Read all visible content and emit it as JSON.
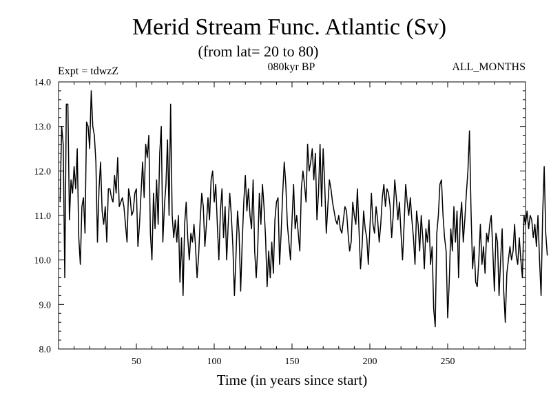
{
  "chart_data": {
    "type": "line",
    "title": "Merid Stream Func. Atlantic (Sv)",
    "subtitle": "(from lat= 20 to 80)",
    "annotation_left": "Expt = tdwzZ",
    "annotation_center": "080kyr BP",
    "annotation_right": "ALL_MONTHS",
    "xlabel": "Time (in years since start)",
    "ylabel": "",
    "xlim": [
      0,
      300
    ],
    "ylim": [
      8.0,
      14.0
    ],
    "xticks": [
      50,
      100,
      150,
      200,
      250
    ],
    "yticks": [
      "8.0",
      "9.0",
      "10.0",
      "11.0",
      "12.0",
      "13.0",
      "14.0"
    ],
    "grid": false,
    "line_color": "#000000",
    "series": [
      {
        "x_start": 1,
        "x_step": 1,
        "values": [
          11.3,
          13.0,
          12.6,
          9.6,
          13.5,
          13.5,
          10.9,
          11.8,
          11.5,
          12.1,
          11.6,
          12.5,
          10.5,
          9.9,
          11.2,
          11.4,
          10.6,
          13.1,
          13.0,
          12.5,
          13.8,
          13.0,
          12.8,
          12.2,
          10.4,
          11.6,
          12.2,
          11.1,
          10.8,
          11.2,
          10.4,
          11.6,
          11.6,
          11.4,
          11.3,
          11.9,
          11.5,
          12.3,
          11.2,
          11.3,
          11.4,
          11.2,
          10.8,
          10.4,
          11.6,
          11.4,
          11.0,
          11.1,
          11.5,
          11.6,
          10.3,
          10.8,
          11.5,
          12.2,
          11.4,
          12.6,
          12.3,
          12.8,
          10.6,
          10.0,
          11.5,
          10.7,
          11.8,
          10.8,
          12.4,
          13.0,
          10.4,
          11.2,
          11.7,
          12.7,
          11.0,
          13.5,
          11.0,
          10.5,
          10.9,
          10.4,
          11.0,
          9.5,
          10.5,
          9.2,
          10.8,
          11.3,
          10.5,
          10.0,
          10.6,
          10.4,
          10.8,
          10.3,
          9.6,
          10.1,
          10.9,
          11.5,
          11.2,
          10.3,
          10.8,
          11.4,
          10.9,
          11.8,
          12.0,
          11.3,
          11.7,
          10.8,
          10.0,
          11.1,
          11.6,
          10.5,
          11.2,
          10.0,
          10.8,
          11.5,
          11.0,
          10.3,
          9.2,
          10.1,
          11.1,
          10.6,
          9.3,
          10.4,
          11.3,
          11.9,
          11.1,
          11.6,
          11.0,
          10.7,
          11.8,
          10.2,
          9.6,
          10.3,
          11.5,
          10.8,
          11.7,
          11.2,
          10.5,
          9.4,
          10.2,
          9.6,
          10.4,
          9.7,
          10.9,
          11.3,
          11.4,
          9.9,
          10.6,
          11.5,
          12.2,
          11.7,
          10.8,
          10.4,
          10.0,
          10.9,
          11.7,
          10.7,
          11.0,
          10.6,
          10.2,
          11.6,
          12.0,
          11.7,
          11.3,
          12.6,
          12.0,
          12.2,
          12.5,
          11.8,
          12.4,
          10.9,
          11.5,
          12.6,
          11.2,
          12.5,
          11.7,
          10.6,
          11.2,
          11.8,
          11.6,
          11.3,
          11.1,
          10.9,
          10.8,
          11.0,
          10.7,
          10.6,
          10.9,
          11.2,
          11.1,
          10.6,
          10.2,
          10.4,
          11.3,
          11.0,
          10.8,
          11.6,
          10.7,
          9.8,
          10.3,
          11.1,
          10.7,
          10.5,
          9.9,
          10.7,
          11.5,
          10.8,
          10.6,
          11.2,
          10.9,
          10.4,
          10.8,
          11.4,
          11.7,
          11.2,
          11.6,
          11.5,
          11.2,
          10.5,
          11.0,
          11.8,
          11.4,
          10.9,
          11.3,
          10.6,
          10.0,
          10.8,
          11.7,
          11.3,
          11.0,
          11.4,
          10.9,
          10.5,
          9.9,
          11.1,
          10.8,
          10.2,
          11.0,
          10.5,
          9.8,
          10.7,
          10.4,
          10.9,
          9.9,
          10.3,
          8.9,
          8.5,
          10.6,
          11.0,
          11.7,
          11.8,
          11.0,
          10.5,
          10.2,
          8.7,
          9.5,
          10.7,
          10.2,
          11.2,
          10.4,
          11.1,
          9.6,
          10.9,
          11.3,
          10.4,
          10.9,
          11.5,
          12.0,
          12.9,
          11.1,
          9.8,
          10.3,
          9.5,
          9.4,
          10.0,
          10.8,
          9.9,
          10.3,
          9.7,
          10.6,
          10.4,
          10.8,
          11.0,
          10.2,
          9.3,
          10.6,
          10.4,
          9.2,
          10.0,
          10.7,
          9.3,
          8.6,
          9.7,
          10.0,
          10.3,
          10.0,
          10.2,
          10.8,
          10.1,
          9.9,
          10.5,
          10.0,
          9.6,
          11.0,
          10.8,
          11.1,
          10.7,
          11.0,
          10.9,
          10.5,
          10.8,
          10.3,
          11.0,
          10.0,
          9.2,
          11.0,
          12.1,
          10.6,
          10.1
        ]
      }
    ]
  }
}
